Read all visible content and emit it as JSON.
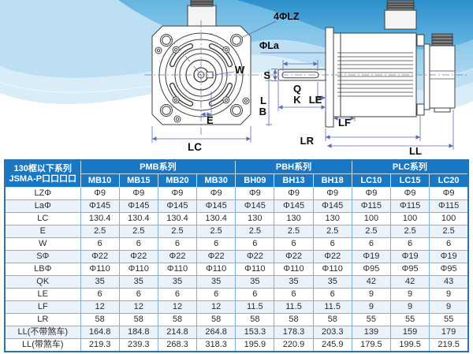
{
  "colors": {
    "header_blue": "#1a78c2",
    "table_outer_border": "#2a72b5",
    "grid_line": "#7fb0d9",
    "row_alt_bg": "#eaf3fb",
    "dimension_line": "#5c6ab0",
    "wave_deep_blue": "#2a92cc",
    "wave_mid_blue": "#54aede",
    "wave_light_blue": "#d9edf9",
    "line_art": "#3f3f3f"
  },
  "diagram": {
    "front_view": {
      "labels": {
        "lz": "4ΦLZ",
        "la": "ΦLa",
        "w": "W",
        "e": "E",
        "lc": "LC"
      }
    },
    "side_view": {
      "labels": {
        "s": "S",
        "q": "Q",
        "k": "K",
        "le": "LE",
        "l": "L",
        "b": "B",
        "lf": "LF",
        "lr": "LR",
        "ll": "LL"
      }
    }
  },
  "table": {
    "corner_header_line1": "130框以下系列",
    "corner_header_line2": "JSMA-P口口口口",
    "series_groups": [
      {
        "label": "PMB系列",
        "models": [
          "MB10",
          "MB15",
          "MB20",
          "MB30"
        ]
      },
      {
        "label": "PBH系列",
        "models": [
          "BH09",
          "BH13",
          "BH18"
        ]
      },
      {
        "label": "PLC系列",
        "models": [
          "LC10",
          "LC15",
          "LC20"
        ]
      }
    ],
    "rows": [
      {
        "label": "LZΦ",
        "values": [
          "Φ9",
          "Φ9",
          "Φ9",
          "Φ9",
          "Φ9",
          "Φ9",
          "Φ9",
          "Φ9",
          "Φ9",
          "Φ9"
        ]
      },
      {
        "label": "LaΦ",
        "values": [
          "Φ145",
          "Φ145",
          "Φ145",
          "Φ145",
          "Φ145",
          "Φ145",
          "Φ145",
          "Φ115",
          "Φ115",
          "Φ115"
        ]
      },
      {
        "label": "LC",
        "values": [
          "130.4",
          "130.4",
          "130.4",
          "130.4",
          "130",
          "130",
          "130",
          "100",
          "100",
          "100"
        ]
      },
      {
        "label": "E",
        "values": [
          "2.5",
          "2.5",
          "2.5",
          "2.5",
          "2.5",
          "2.5",
          "2.5",
          "2.5",
          "2.5",
          "2.5"
        ]
      },
      {
        "label": "W",
        "values": [
          "6",
          "6",
          "6",
          "6",
          "6",
          "6",
          "6",
          "6",
          "6",
          "6"
        ]
      },
      {
        "label": "SΦ",
        "values": [
          "Φ22",
          "Φ22",
          "Φ22",
          "Φ22",
          "Φ22",
          "Φ22",
          "Φ22",
          "Φ19",
          "Φ19",
          "Φ19"
        ]
      },
      {
        "label": "LBΦ",
        "values": [
          "Φ110",
          "Φ110",
          "Φ110",
          "Φ110",
          "Φ110",
          "Φ110",
          "Φ110",
          "Φ95",
          "Φ95",
          "Φ95"
        ]
      },
      {
        "label": "QK",
        "values": [
          "35",
          "35",
          "35",
          "35",
          "35",
          "35",
          "35",
          "42",
          "42",
          "43"
        ]
      },
      {
        "label": "LE",
        "values": [
          "6",
          "6",
          "6",
          "6",
          "6",
          "6",
          "6",
          "9",
          "9",
          "9"
        ]
      },
      {
        "label": "LF",
        "values": [
          "12",
          "12",
          "12",
          "12",
          "11.5",
          "11.5",
          "11.5",
          "9",
          "9",
          "9"
        ]
      },
      {
        "label": "LR",
        "values": [
          "58",
          "58",
          "58",
          "58",
          "58",
          "58",
          "58",
          "55",
          "55",
          "55"
        ]
      },
      {
        "label": "LL(不带煞车)",
        "values": [
          "164.8",
          "184.8",
          "214.8",
          "264.8",
          "153.3",
          "178.3",
          "203.3",
          "139",
          "159",
          "179"
        ]
      },
      {
        "label": "LL(带煞车)",
        "values": [
          "219.3",
          "239.3",
          "268.3",
          "318.3",
          "195.9",
          "220.9",
          "245.9",
          "179.5",
          "199.5",
          "219.5"
        ]
      }
    ]
  }
}
